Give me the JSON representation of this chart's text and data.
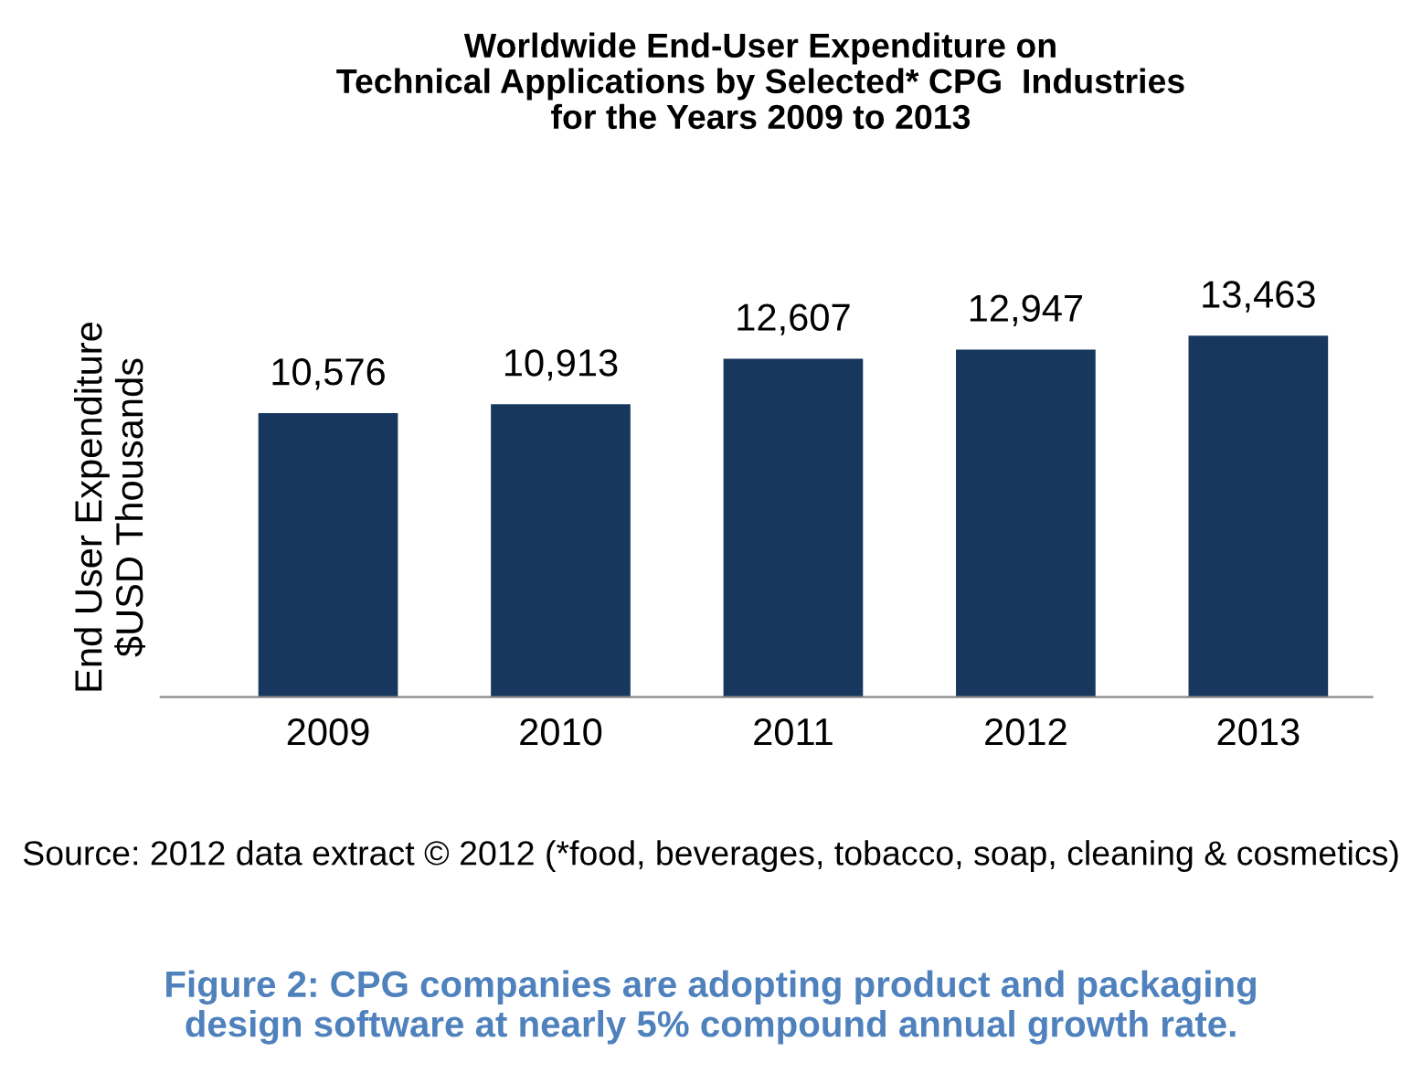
{
  "chart_data": {
    "type": "bar",
    "title": "Worldwide End-User Expenditure on\nTechnical Applications by Selected* CPG  Industries\nfor the Years 2009 to 2013",
    "ylabel": "End User Expenditure\n$USD Thousands",
    "categories": [
      "2009",
      "2010",
      "2011",
      "2012",
      "2013"
    ],
    "values": [
      10576,
      10913,
      12607,
      12947,
      13463
    ],
    "value_labels": [
      "10,576",
      "10,913",
      "12,607",
      "12,947",
      "13,463"
    ],
    "color": "#17375e",
    "grid": false,
    "legend": false,
    "annotations": [
      "Source: 2012 data extract © 2012 (*food, beverages, tobacco, soap, cleaning & cosmetics)",
      "Figure 2: CPG companies are adopting product and packaging\ndesign software at nearly 5% compound annual growth rate."
    ]
  }
}
